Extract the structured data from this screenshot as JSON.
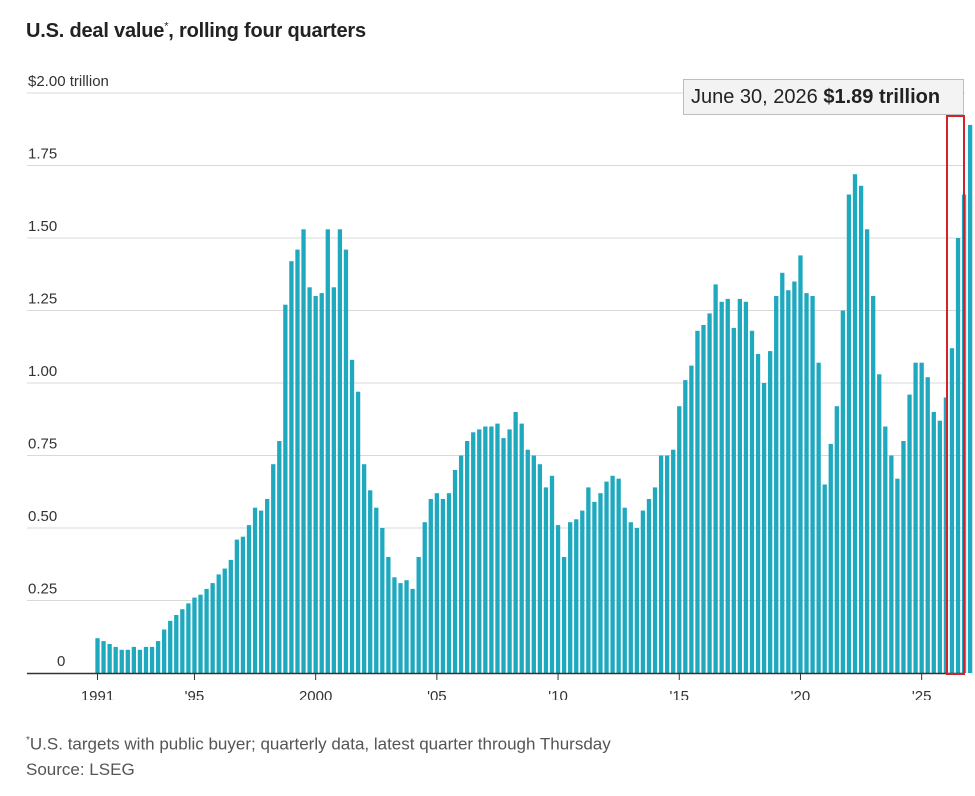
{
  "title": "U.S. deal value",
  "title_marker": "*",
  "title_rest": ", rolling four quarters",
  "callout": {
    "date": "June 30, 2026",
    "value": "$1.89 trillion"
  },
  "footnote": {
    "marker": "*",
    "text": "U.S. targets with public buyer; quarterly data, latest quarter through Thursday"
  },
  "source": "Source: LSEG",
  "colors": {
    "bar": "#1fa9bf",
    "grid": "#d9d9d9",
    "axis": "#333333",
    "highlight": "#d0232a"
  },
  "chart_data": {
    "type": "bar",
    "title": "U.S. deal value*, rolling four quarters",
    "ylabel": "",
    "xlabel": "",
    "ylim": [
      0,
      2.0
    ],
    "start": "1991 Q1",
    "frequency": "quarterly",
    "y_ticks": [
      0,
      0.25,
      0.5,
      0.75,
      1.0,
      1.25,
      1.5,
      1.75,
      2.0
    ],
    "y_tick_labels": [
      "0",
      "0.25",
      "0.50",
      "0.75",
      "1.00",
      "1.25",
      "1.50",
      "1.75",
      "$2.00 trillion"
    ],
    "x_tick_labels": [
      "1991",
      "'95",
      "2000",
      "'05",
      "'10",
      "'15",
      "'20",
      "'25"
    ],
    "x_tick_years": [
      1991,
      1995,
      2000,
      2005,
      2010,
      2015,
      2020,
      2025
    ],
    "grid": true,
    "values": [
      0.12,
      0.11,
      0.1,
      0.09,
      0.08,
      0.08,
      0.09,
      0.08,
      0.09,
      0.09,
      0.11,
      0.15,
      0.18,
      0.2,
      0.22,
      0.24,
      0.26,
      0.27,
      0.29,
      0.31,
      0.34,
      0.36,
      0.39,
      0.46,
      0.47,
      0.51,
      0.57,
      0.56,
      0.6,
      0.72,
      0.8,
      1.27,
      1.42,
      1.46,
      1.53,
      1.33,
      1.3,
      1.31,
      1.53,
      1.33,
      1.53,
      1.46,
      1.08,
      0.97,
      0.72,
      0.63,
      0.57,
      0.5,
      0.4,
      0.33,
      0.31,
      0.32,
      0.29,
      0.4,
      0.52,
      0.6,
      0.62,
      0.6,
      0.62,
      0.7,
      0.75,
      0.8,
      0.83,
      0.84,
      0.85,
      0.85,
      0.86,
      0.81,
      0.84,
      0.9,
      0.86,
      0.77,
      0.75,
      0.72,
      0.64,
      0.68,
      0.51,
      0.4,
      0.52,
      0.53,
      0.56,
      0.64,
      0.59,
      0.62,
      0.66,
      0.68,
      0.67,
      0.57,
      0.52,
      0.5,
      0.56,
      0.6,
      0.64,
      0.75,
      0.75,
      0.77,
      0.92,
      1.01,
      1.06,
      1.18,
      1.2,
      1.24,
      1.34,
      1.28,
      1.29,
      1.19,
      1.29,
      1.28,
      1.18,
      1.1,
      1.0,
      1.11,
      1.3,
      1.38,
      1.32,
      1.35,
      1.44,
      1.31,
      1.3,
      1.07,
      0.65,
      0.79,
      0.92,
      1.25,
      1.65,
      1.72,
      1.68,
      1.53,
      1.3,
      1.03,
      0.85,
      0.75,
      0.67,
      0.8,
      0.96,
      1.07,
      1.07,
      1.02,
      0.9,
      0.87,
      0.95,
      1.12,
      1.5,
      1.65,
      1.89
    ]
  }
}
